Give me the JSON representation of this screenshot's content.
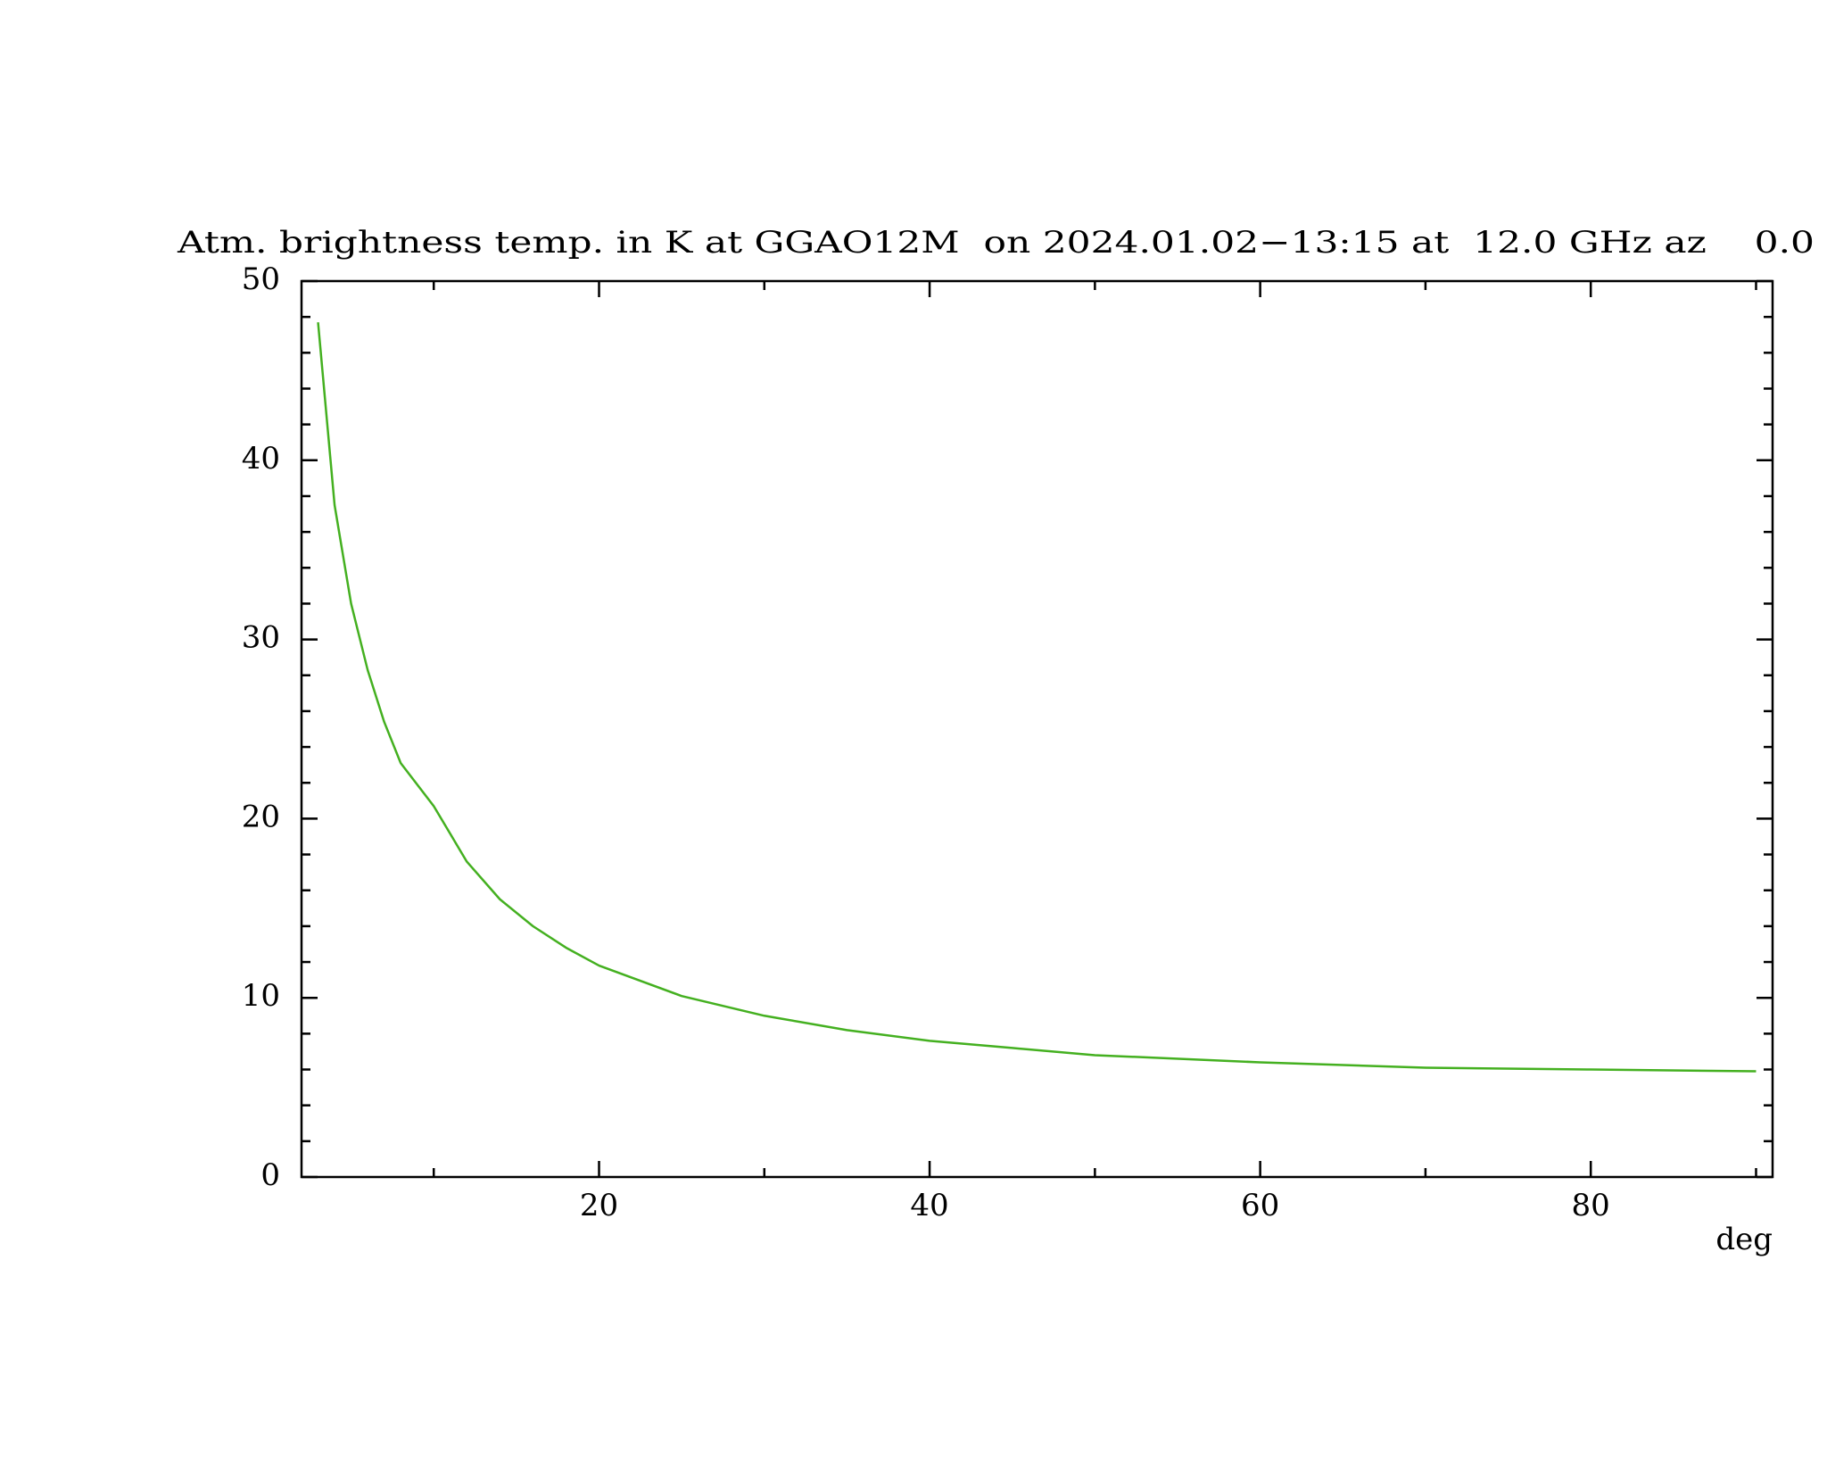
{
  "chart_data": {
    "type": "line",
    "title": "Atm. brightness temp. in K at GGAO12M  on 2024.01.02−13:15 at  12.0 GHz az    0.0",
    "xlabel": "deg",
    "x": [
      3,
      4,
      5,
      6,
      7,
      8,
      10,
      12,
      14,
      16,
      18,
      20,
      25,
      30,
      35,
      40,
      45,
      50,
      60,
      70,
      80,
      90
    ],
    "series": [
      {
        "color": "#44b020",
        "values": [
          47.7,
          37.5,
          32,
          28.3,
          25.4,
          23.1,
          20.7,
          17.6,
          15.5,
          14.0,
          12.8,
          11.8,
          10.1,
          9.0,
          8.2,
          7.6,
          7.2,
          6.8,
          6.4,
          6.1,
          6.0,
          5.9
        ]
      }
    ],
    "xlim": [
      2,
      91
    ],
    "ylim": [
      0,
      50
    ],
    "xticks": [
      20,
      40,
      60,
      80
    ],
    "yticks": [
      0,
      10,
      20,
      30,
      40,
      50
    ],
    "xminorticks": [
      10,
      30,
      50,
      70,
      90
    ],
    "yminorticks": [
      2,
      4,
      6,
      8,
      12,
      14,
      16,
      18,
      22,
      24,
      26,
      28,
      32,
      34,
      36,
      38,
      42,
      44,
      46,
      48
    ]
  }
}
